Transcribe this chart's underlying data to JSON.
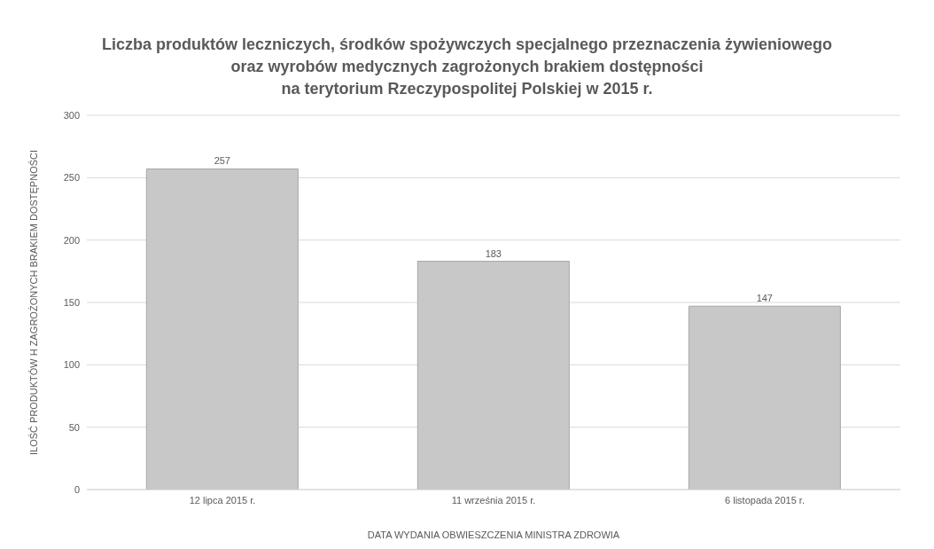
{
  "chart_data": {
    "type": "bar",
    "title": "Liczba produktów leczniczych, środków spożywczych specjalnego przeznaczenia żywieniowego\noraz wyrobów medycznych zagrożonych brakiem dostępności\nna terytorium Rzeczypospolitej Polskiej w 2015 r.",
    "xlabel": "DATA WYDANIA OBWIESZCZENIA MINISTRA ZDROWIA",
    "ylabel": "ILOŚĆ PRODUKTÓW H ZAGROŻONYCH BRAKIEM DOSTĘPNOŚCI",
    "categories": [
      "12 lipca 2015 r.",
      "11 września 2015 r.",
      "6 listopada 2015 r."
    ],
    "values": [
      257,
      183,
      147
    ],
    "color": "#c8c8c8",
    "ylim": [
      0,
      300
    ],
    "yticks": [
      0,
      50,
      100,
      150,
      200,
      250,
      300
    ],
    "grid": "y",
    "data_labels": true
  }
}
